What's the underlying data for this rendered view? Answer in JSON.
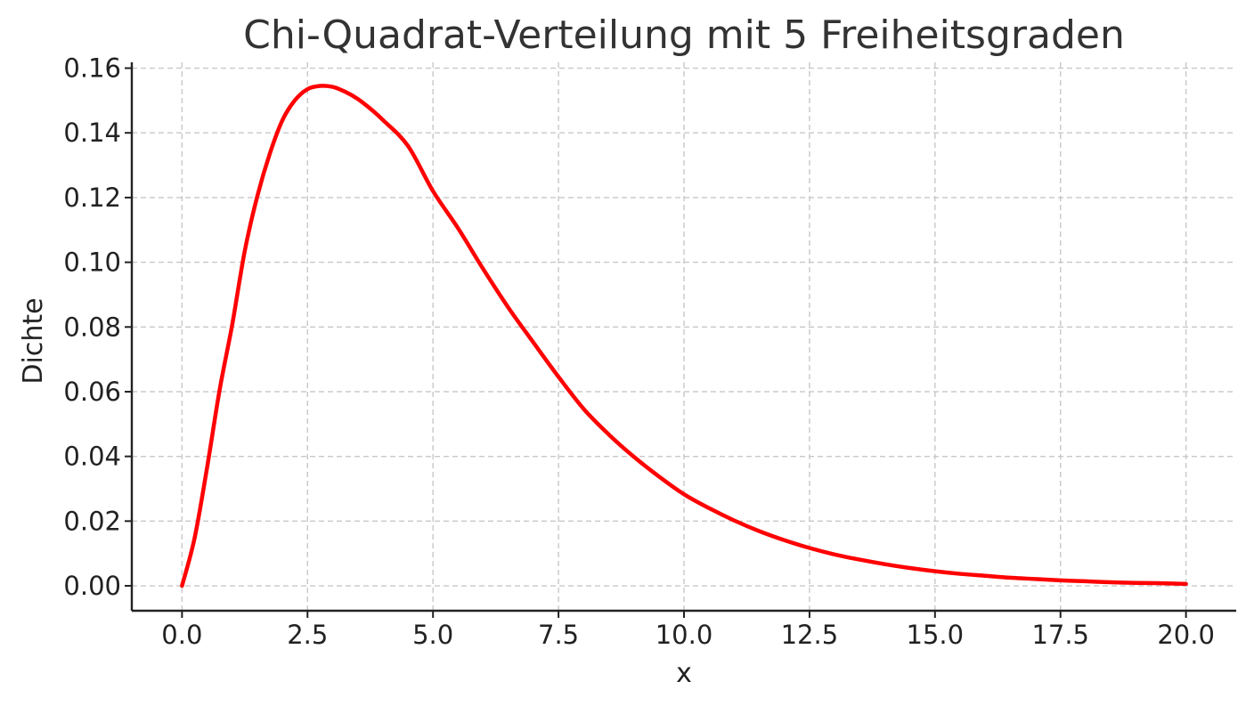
{
  "chart_data": {
    "type": "line",
    "title": "Chi-Quadrat-Verteilung mit 5 Freiheitsgraden",
    "xlabel": "x",
    "ylabel": "Dichte",
    "xlim": [
      -1.0,
      21.0
    ],
    "ylim": [
      -0.0077,
      0.1618
    ],
    "grid": true,
    "x_ticks": [
      0.0,
      2.5,
      5.0,
      7.5,
      10.0,
      12.5,
      15.0,
      17.5,
      20.0
    ],
    "x_tick_labels": [
      "0.0",
      "2.5",
      "5.0",
      "7.5",
      "10.0",
      "12.5",
      "15.0",
      "17.5",
      "20.0"
    ],
    "y_ticks": [
      0.0,
      0.02,
      0.04,
      0.06,
      0.08,
      0.1,
      0.12,
      0.14,
      0.16
    ],
    "y_tick_labels": [
      "0.00",
      "0.02",
      "0.04",
      "0.06",
      "0.08",
      "0.10",
      "0.12",
      "0.14",
      "0.16"
    ],
    "series": [
      {
        "color": "#ff0000",
        "x": [
          0.0,
          0.25,
          0.5,
          0.75,
          1.0,
          1.25,
          1.5,
          1.75,
          2.0,
          2.25,
          2.5,
          2.75,
          3.0,
          3.25,
          3.5,
          3.75,
          4.0,
          4.5,
          5.0,
          5.5,
          6.0,
          6.5,
          7.0,
          7.5,
          8.0,
          8.5,
          9.0,
          9.5,
          10.0,
          10.5,
          11.0,
          11.5,
          12.0,
          12.5,
          13.0,
          13.5,
          14.0,
          14.5,
          15.0,
          15.5,
          16.0,
          16.5,
          17.0,
          17.5,
          18.0,
          18.5,
          19.0,
          19.5,
          20.0
        ],
        "y": [
          0.0,
          0.0147,
          0.0366,
          0.0606,
          0.0807,
          0.1035,
          0.1204,
          0.1336,
          0.1439,
          0.1501,
          0.1535,
          0.1545,
          0.1542,
          0.1527,
          0.1505,
          0.1475,
          0.144,
          0.136,
          0.122,
          0.1105,
          0.0979,
          0.086,
          0.0752,
          0.0646,
          0.0547,
          0.0468,
          0.0399,
          0.0338,
          0.0283,
          0.024,
          0.0202,
          0.0169,
          0.0141,
          0.0117,
          0.0097,
          0.0081,
          0.0067,
          0.0055,
          0.0045,
          0.0037,
          0.0031,
          0.0025,
          0.0021,
          0.0017,
          0.0014,
          0.0011,
          0.0009,
          0.0008,
          0.0006
        ]
      }
    ]
  }
}
